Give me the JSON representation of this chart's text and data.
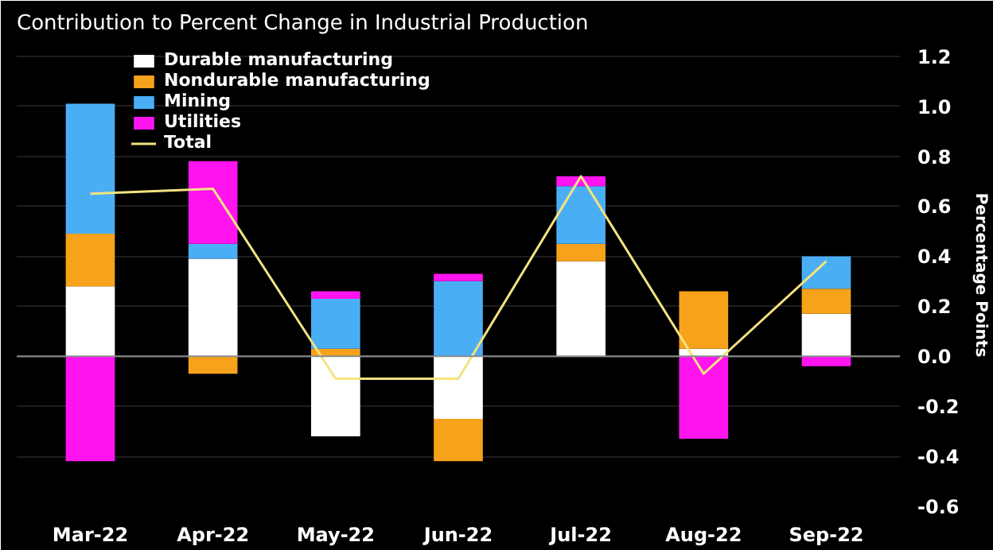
{
  "chart_data": {
    "type": "bar",
    "title": "Contribution to Percent Change in Industrial Production",
    "ylabel": "Percentage Points",
    "categories": [
      "Mar-22",
      "Apr-22",
      "May-22",
      "Jun-22",
      "Jul-22",
      "Aug-22",
      "Sep-22"
    ],
    "stacked": true,
    "series": [
      {
        "name": "Durable manufacturing",
        "color": "#ffffff",
        "values": [
          0.28,
          0.39,
          -0.32,
          -0.25,
          0.38,
          0.03,
          0.17
        ]
      },
      {
        "name": "Nondurable manufacturing",
        "color": "#f7a21b",
        "values": [
          0.21,
          -0.07,
          0.03,
          -0.17,
          0.07,
          0.23,
          0.1
        ]
      },
      {
        "name": "Mining",
        "color": "#4aaef5",
        "values": [
          0.52,
          0.06,
          0.2,
          0.3,
          0.23,
          0,
          0.13
        ]
      },
      {
        "name": "Utilities",
        "color": "#ff14f0",
        "values": [
          -0.42,
          0.33,
          0.03,
          0.03,
          0.04,
          -0.33,
          -0.04
        ]
      },
      {
        "name": "Total",
        "type": "line",
        "color": "#f6e27f",
        "values": [
          0.65,
          0.67,
          -0.09,
          -0.09,
          0.72,
          -0.07,
          0.38
        ]
      }
    ],
    "ylim": [
      -0.6,
      1.25
    ],
    "yticks": [
      {
        "value": -0.6,
        "label": "-0.6"
      },
      {
        "value": -0.4,
        "label": "-0.4"
      },
      {
        "value": -0.2,
        "label": "-0.2"
      },
      {
        "value": 0,
        "label": "0.0"
      },
      {
        "value": 0.2,
        "label": "0.2"
      },
      {
        "value": 0.4,
        "label": "0.4"
      },
      {
        "value": 0.6,
        "label": "0.6"
      },
      {
        "value": 0.8,
        "label": "0.8"
      },
      {
        "value": 1.0,
        "label": "1.0"
      },
      {
        "value": 1.2,
        "label": "1.2"
      }
    ],
    "grid": "y",
    "legend": "top left",
    "ref_lines": [
      {
        "axis": "y",
        "value": 0,
        "color": "#8c8c8c"
      }
    ]
  }
}
